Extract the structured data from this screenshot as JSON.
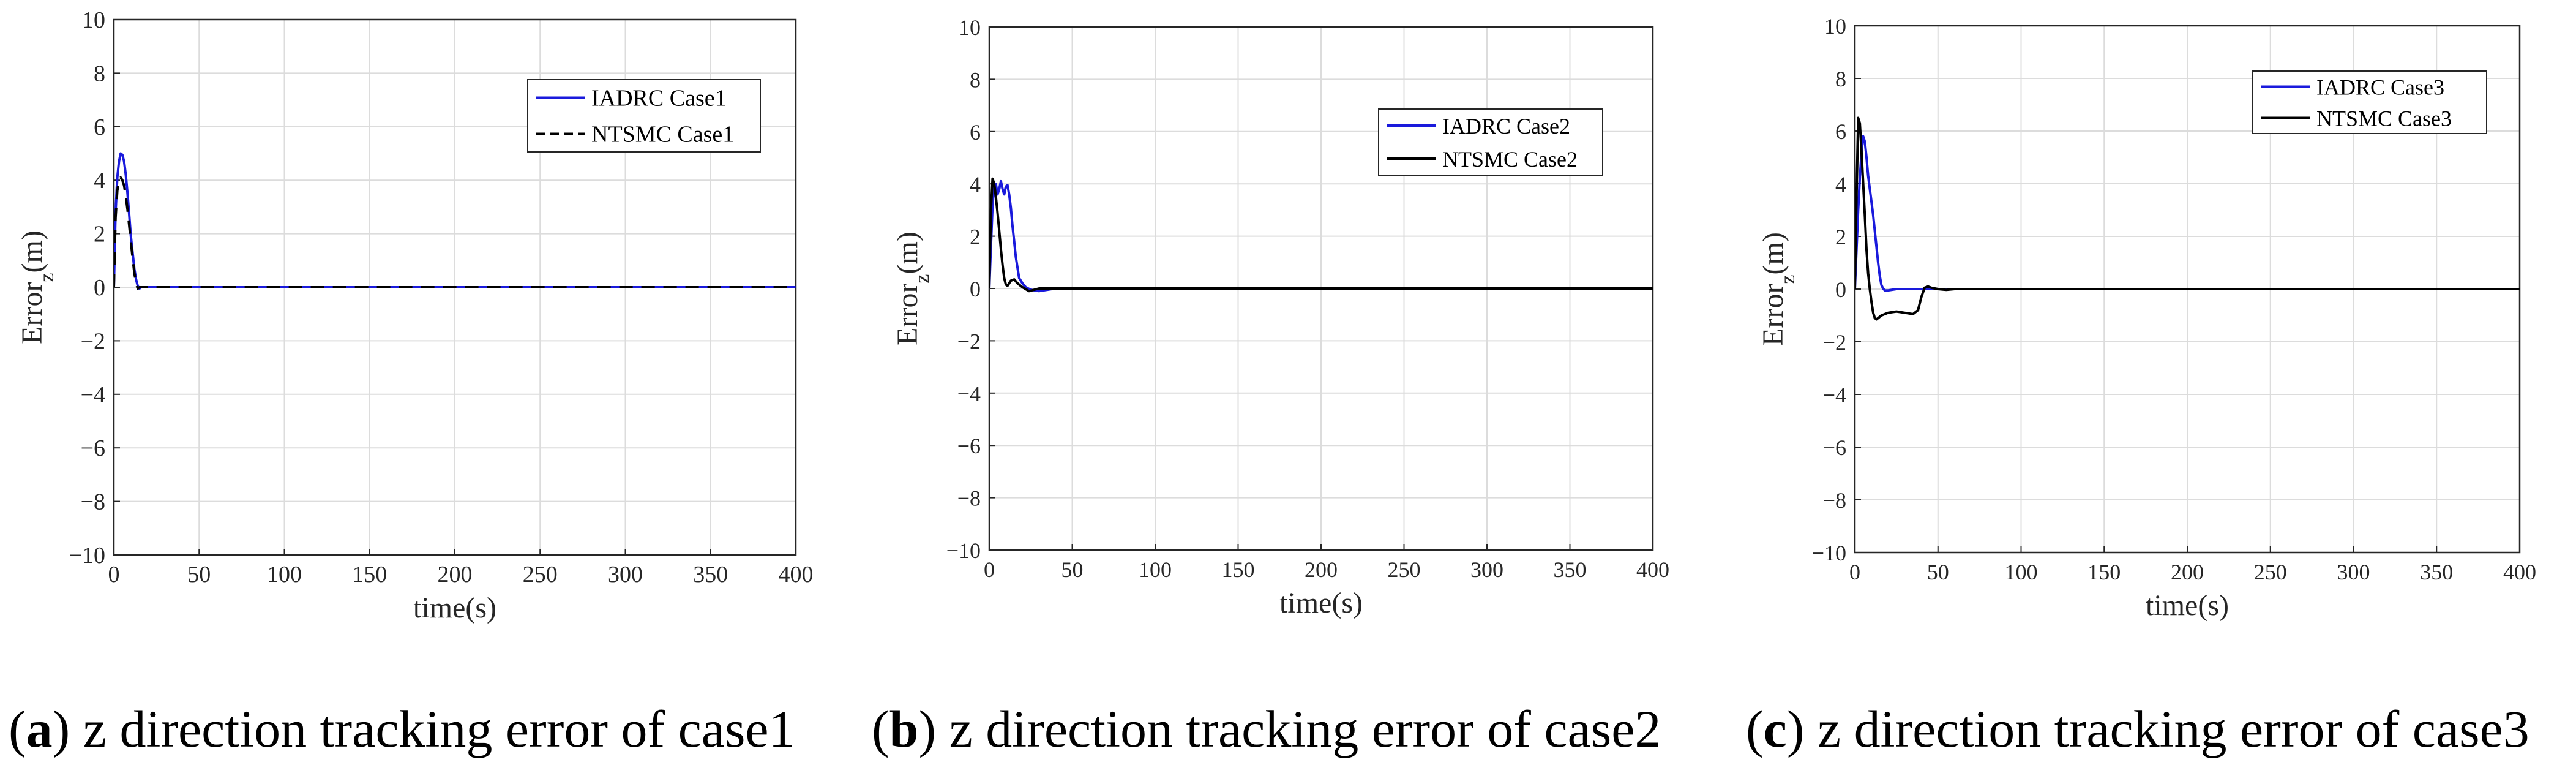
{
  "captions": [
    {
      "letter": "a",
      "text": " z direction tracking error of case1"
    },
    {
      "letter": "b",
      "text": " z direction tracking error of case2"
    },
    {
      "letter": "c",
      "text": " z direction tracking error of case3"
    }
  ],
  "chart_data": [
    {
      "type": "line",
      "title": "",
      "xlabel": "time(s)",
      "ylabel": "Error",
      "ylabel_sub": "z",
      "ylabel_unit": "(m)",
      "xlim": [
        0,
        400
      ],
      "ylim": [
        -10,
        10
      ],
      "xticks": [
        0,
        50,
        100,
        150,
        200,
        250,
        300,
        350,
        400
      ],
      "yticks": [
        -10,
        -8,
        -6,
        -4,
        -2,
        0,
        2,
        4,
        6,
        8,
        10
      ],
      "grid": true,
      "legend_position": "top-right",
      "series": [
        {
          "name": "IADRC Case1",
          "color": "#1a1adc",
          "dash": "solid",
          "x": [
            0,
            1,
            2,
            3,
            4,
            5,
            6,
            7,
            8,
            9,
            10,
            11,
            12,
            13,
            14,
            15,
            16,
            400
          ],
          "y": [
            0,
            2.8,
            4.1,
            4.7,
            5.0,
            4.95,
            4.7,
            4.2,
            3.5,
            2.7,
            1.9,
            1.3,
            0.7,
            0.3,
            0.05,
            -0.05,
            0,
            0
          ]
        },
        {
          "name": "NTSMC Case1",
          "color": "#000000",
          "dash": "dashed",
          "x": [
            0,
            1,
            2,
            3,
            4,
            5,
            6,
            7,
            8,
            9,
            10,
            11,
            12,
            13,
            14,
            15,
            400
          ],
          "y": [
            0,
            2.6,
            3.6,
            4.0,
            4.1,
            4.0,
            3.8,
            3.4,
            2.9,
            2.3,
            1.7,
            1.1,
            0.55,
            0.15,
            -0.05,
            0,
            0
          ]
        }
      ]
    },
    {
      "type": "line",
      "title": "",
      "xlabel": "time(s)",
      "ylabel": "Error",
      "ylabel_sub": "z",
      "ylabel_unit": "(m)",
      "xlim": [
        0,
        400
      ],
      "ylim": [
        -10,
        10
      ],
      "xticks": [
        0,
        50,
        100,
        150,
        200,
        250,
        300,
        350,
        400
      ],
      "yticks": [
        -10,
        -8,
        -6,
        -4,
        -2,
        0,
        2,
        4,
        6,
        8,
        10
      ],
      "grid": true,
      "legend_position": "top-right",
      "series": [
        {
          "name": "IADRC Case2",
          "color": "#1a1adc",
          "dash": "solid",
          "x": [
            0,
            2,
            3,
            4,
            5,
            6,
            7,
            8,
            9,
            10,
            11,
            12,
            13,
            14,
            15,
            16,
            17,
            18,
            20,
            22,
            25,
            30,
            40,
            400
          ],
          "y": [
            0,
            3.2,
            3.9,
            4.0,
            3.6,
            3.8,
            4.1,
            3.8,
            3.6,
            3.9,
            3.95,
            3.6,
            3.1,
            2.4,
            1.8,
            1.2,
            0.8,
            0.4,
            0.2,
            0.05,
            -0.05,
            -0.1,
            0,
            0
          ]
        },
        {
          "name": "NTSMC Case2",
          "color": "#000000",
          "dash": "solid",
          "x": [
            0,
            1,
            2,
            3,
            4,
            5,
            6,
            7,
            8,
            9,
            10,
            11,
            12,
            13,
            15,
            17,
            20,
            24,
            30,
            400
          ],
          "y": [
            0,
            3.0,
            4.2,
            4.0,
            3.5,
            2.9,
            2.2,
            1.5,
            0.9,
            0.4,
            0.15,
            0.1,
            0.2,
            0.3,
            0.35,
            0.2,
            0.05,
            -0.1,
            0,
            0
          ]
        }
      ]
    },
    {
      "type": "line",
      "title": "",
      "xlabel": "time(s)",
      "ylabel": "Error",
      "ylabel_sub": "z",
      "ylabel_unit": "(m)",
      "xlim": [
        0,
        400
      ],
      "ylim": [
        -10,
        10
      ],
      "xticks": [
        0,
        50,
        100,
        150,
        200,
        250,
        300,
        350,
        400
      ],
      "yticks": [
        -10,
        -8,
        -6,
        -4,
        -2,
        0,
        2,
        4,
        6,
        8,
        10
      ],
      "grid": true,
      "legend_position": "top-right",
      "series": [
        {
          "name": "IADRC Case3",
          "color": "#1a1adc",
          "dash": "solid",
          "x": [
            0,
            1,
            2,
            3,
            4,
            5,
            6,
            7,
            8,
            9,
            10,
            11,
            12,
            13,
            14,
            15,
            16,
            17,
            18,
            20,
            25,
            30,
            40,
            400
          ],
          "y": [
            0,
            1.5,
            3.0,
            4.2,
            5.2,
            5.8,
            5.6,
            5.0,
            4.3,
            3.8,
            3.3,
            2.8,
            2.2,
            1.6,
            1.0,
            0.5,
            0.15,
            0.02,
            -0.05,
            -0.05,
            0,
            0,
            0,
            0
          ]
        },
        {
          "name": "NTSMC Case3",
          "color": "#000000",
          "dash": "solid",
          "x": [
            0,
            1,
            2,
            3,
            4,
            5,
            6,
            7,
            8,
            9,
            10,
            11,
            12,
            13,
            14,
            16,
            20,
            25,
            30,
            35,
            38,
            40,
            42,
            44,
            46,
            50,
            55,
            60,
            70,
            400
          ],
          "y": [
            0,
            3.5,
            6.5,
            6.3,
            5.2,
            4.0,
            2.8,
            1.5,
            0.6,
            0.0,
            -0.5,
            -0.9,
            -1.1,
            -1.15,
            -1.1,
            -1.0,
            -0.9,
            -0.85,
            -0.9,
            -0.95,
            -0.8,
            -0.3,
            0.05,
            0.1,
            0.05,
            0.0,
            -0.03,
            0,
            0,
            0
          ]
        }
      ]
    }
  ]
}
